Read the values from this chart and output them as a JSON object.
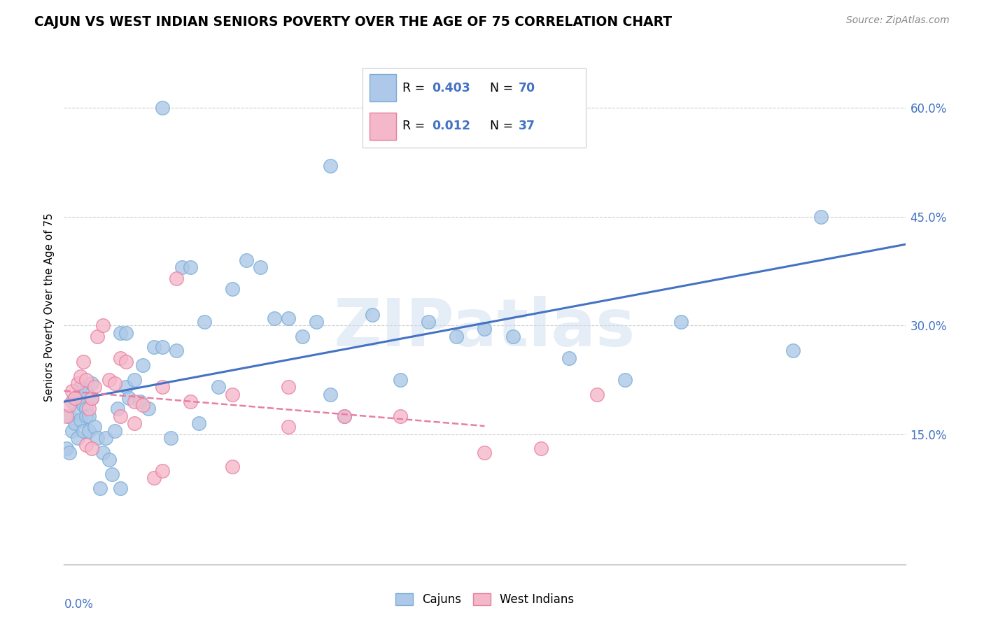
{
  "title": "CAJUN VS WEST INDIAN SENIORS POVERTY OVER THE AGE OF 75 CORRELATION CHART",
  "source": "Source: ZipAtlas.com",
  "ylabel": "Seniors Poverty Over the Age of 75",
  "xmin": 0.0,
  "xmax": 0.3,
  "ymin": -0.03,
  "ymax": 0.68,
  "cajun_color": "#adc8e8",
  "cajun_edge_color": "#7aaed6",
  "west_indian_color": "#f5b8ca",
  "west_indian_edge_color": "#e87fa0",
  "trend_cajun_color": "#4472c4",
  "trend_west_indian_color": "#e87fa0",
  "legend_R_cajun": "0.403",
  "legend_N_cajun": "70",
  "legend_R_west_indian": "0.012",
  "legend_N_west_indian": "37",
  "watermark": "ZIPatlas",
  "watermark_color": "#d0dff0",
  "cajun_x": [
    0.001,
    0.002,
    0.002,
    0.003,
    0.003,
    0.004,
    0.004,
    0.005,
    0.005,
    0.005,
    0.006,
    0.006,
    0.007,
    0.007,
    0.008,
    0.008,
    0.008,
    0.009,
    0.009,
    0.01,
    0.01,
    0.011,
    0.012,
    0.013,
    0.014,
    0.015,
    0.016,
    0.017,
    0.018,
    0.019,
    0.02,
    0.022,
    0.023,
    0.025,
    0.027,
    0.028,
    0.03,
    0.032,
    0.035,
    0.038,
    0.04,
    0.042,
    0.045,
    0.048,
    0.05,
    0.055,
    0.06,
    0.065,
    0.07,
    0.075,
    0.08,
    0.085,
    0.09,
    0.095,
    0.1,
    0.11,
    0.12,
    0.13,
    0.14,
    0.15,
    0.16,
    0.18,
    0.2,
    0.22,
    0.26,
    0.27,
    0.035,
    0.095,
    0.02,
    0.022
  ],
  "cajun_y": [
    0.13,
    0.125,
    0.175,
    0.195,
    0.155,
    0.2,
    0.165,
    0.145,
    0.18,
    0.2,
    0.215,
    0.17,
    0.155,
    0.19,
    0.185,
    0.21,
    0.175,
    0.175,
    0.155,
    0.2,
    0.22,
    0.16,
    0.145,
    0.075,
    0.125,
    0.145,
    0.115,
    0.095,
    0.155,
    0.185,
    0.075,
    0.215,
    0.2,
    0.225,
    0.195,
    0.245,
    0.185,
    0.27,
    0.27,
    0.145,
    0.265,
    0.38,
    0.38,
    0.165,
    0.305,
    0.215,
    0.35,
    0.39,
    0.38,
    0.31,
    0.31,
    0.285,
    0.305,
    0.205,
    0.175,
    0.315,
    0.225,
    0.305,
    0.285,
    0.295,
    0.285,
    0.255,
    0.225,
    0.305,
    0.265,
    0.45,
    0.6,
    0.52,
    0.29,
    0.29
  ],
  "west_indian_x": [
    0.001,
    0.002,
    0.003,
    0.004,
    0.005,
    0.006,
    0.007,
    0.008,
    0.009,
    0.01,
    0.011,
    0.012,
    0.014,
    0.016,
    0.018,
    0.02,
    0.022,
    0.025,
    0.028,
    0.032,
    0.035,
    0.04,
    0.045,
    0.06,
    0.08,
    0.1,
    0.12,
    0.15,
    0.17,
    0.19,
    0.02,
    0.025,
    0.008,
    0.01,
    0.035,
    0.06,
    0.08
  ],
  "west_indian_y": [
    0.175,
    0.19,
    0.21,
    0.2,
    0.22,
    0.23,
    0.25,
    0.225,
    0.185,
    0.2,
    0.215,
    0.285,
    0.3,
    0.225,
    0.22,
    0.255,
    0.25,
    0.195,
    0.19,
    0.09,
    0.215,
    0.365,
    0.195,
    0.205,
    0.215,
    0.175,
    0.175,
    0.125,
    0.13,
    0.205,
    0.175,
    0.165,
    0.135,
    0.13,
    0.1,
    0.105,
    0.16
  ]
}
